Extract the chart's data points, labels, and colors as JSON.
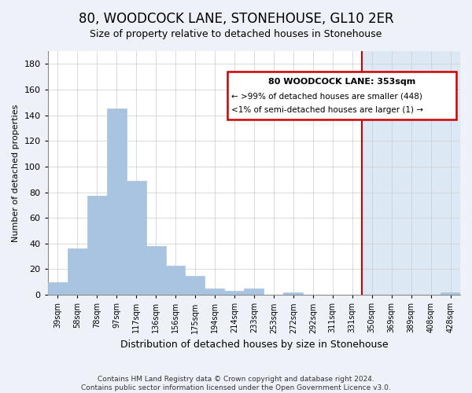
{
  "title": "80, WOODCOCK LANE, STONEHOUSE, GL10 2ER",
  "subtitle": "Size of property relative to detached houses in Stonehouse",
  "xlabel": "Distribution of detached houses by size in Stonehouse",
  "ylabel": "Number of detached properties",
  "footnote": "Contains HM Land Registry data © Crown copyright and database right 2024.\nContains public sector information licensed under the Open Government Licence v3.0.",
  "categories": [
    "39sqm",
    "58sqm",
    "78sqm",
    "97sqm",
    "117sqm",
    "136sqm",
    "156sqm",
    "175sqm",
    "194sqm",
    "214sqm",
    "233sqm",
    "253sqm",
    "272sqm",
    "292sqm",
    "311sqm",
    "331sqm",
    "350sqm",
    "369sqm",
    "389sqm",
    "408sqm",
    "428sqm"
  ],
  "values": [
    10,
    36,
    77,
    145,
    89,
    38,
    23,
    15,
    5,
    3,
    5,
    0,
    2,
    0,
    0,
    0,
    0,
    0,
    0,
    0,
    2
  ],
  "highlight_index": 16,
  "bar_color_normal": "#a8c4e0",
  "bar_color_highlight_region": "#dde8f5",
  "highlight_line_color": "#cc0000",
  "legend_text_line1": "80 WOODCOCK LANE: 353sqm",
  "legend_text_line2": "← >99% of detached houses are smaller (448)",
  "legend_text_line3": "<1% of semi-detached houses are larger (1) →",
  "ylim": [
    0,
    190
  ],
  "yticks": [
    0,
    20,
    40,
    60,
    80,
    100,
    120,
    140,
    160,
    180
  ],
  "background_color": "#eef2f8",
  "plot_bg_color": "#ffffff",
  "grid_color": "#cccccc",
  "title_fontsize": 12,
  "subtitle_fontsize": 9
}
